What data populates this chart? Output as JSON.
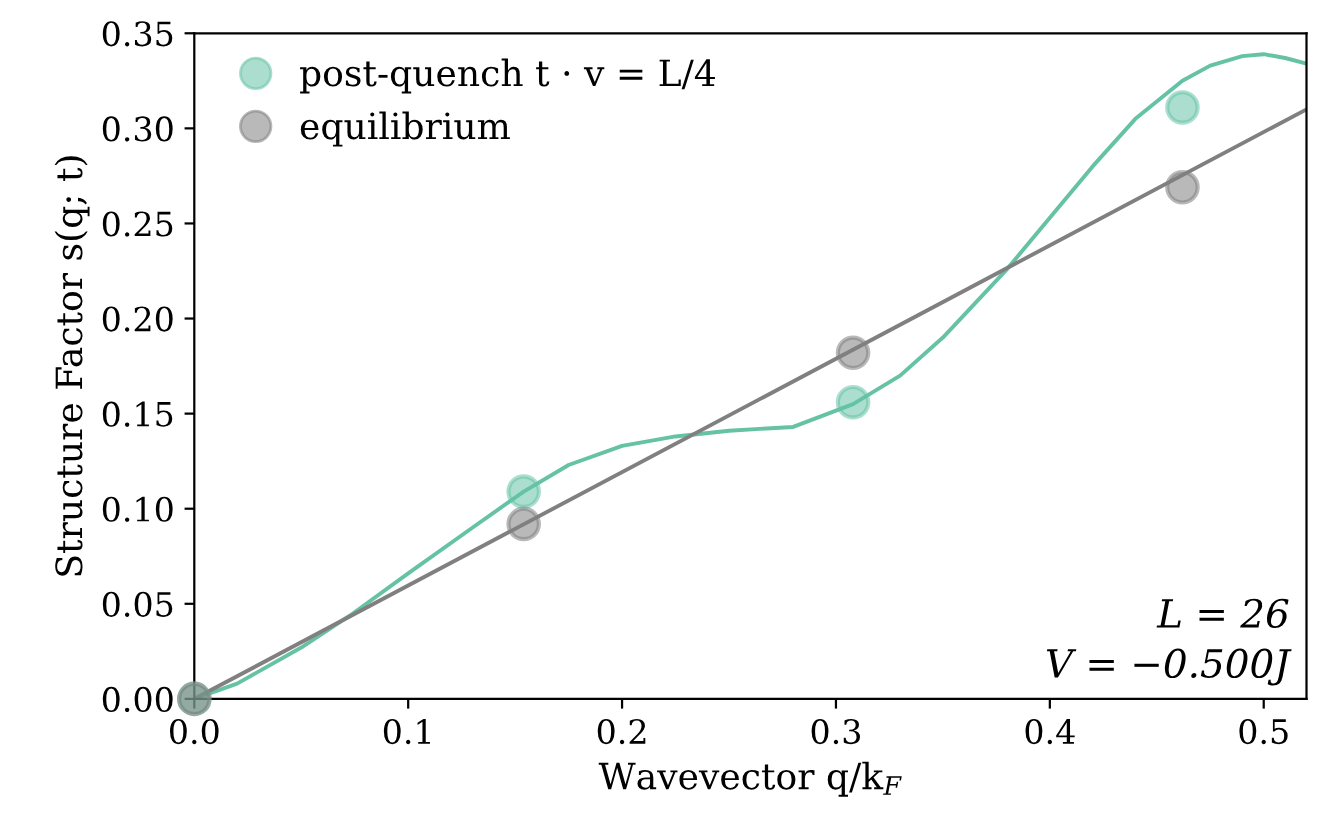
{
  "chart_data": {
    "type": "scatter",
    "xlabel": "Wavevector q/k$_{F}$",
    "ylabel": "Structure Factor s(q; t)",
    "xlim": [
      0,
      0.52
    ],
    "ylim": [
      0,
      0.35
    ],
    "xticks": [
      {
        "value": 0,
        "label": "0.0"
      },
      0.1,
      0.2,
      0.3,
      0.4,
      0.5
    ],
    "yticks": [
      {
        "value": 0,
        "label": "0.00"
      },
      0.05,
      {
        "value": 0.1,
        "label": "0.10"
      },
      0.15,
      {
        "value": 0.2,
        "label": "0.20"
      },
      0.25,
      {
        "value": 0.3,
        "label": "0.30"
      },
      0.35
    ],
    "grid": false,
    "legend": "top left",
    "annotations": [
      "L = 26",
      "V = −0.500J"
    ],
    "series": [
      {
        "name": "post-quench t · v = L/4",
        "color": "#66c2a5",
        "marker": "circle",
        "x": [
          0,
          0.154,
          0.308,
          0.462
        ],
        "values": [
          0,
          0.109,
          0.156,
          0.311
        ]
      },
      {
        "name": "equilibrium",
        "color": "#808080",
        "marker": "circle",
        "x": [
          0,
          0.154,
          0.308,
          0.462
        ],
        "values": [
          0,
          0.092,
          0.182,
          0.269
        ]
      },
      {
        "type": "line",
        "marker": "none",
        "color": "#66c2a5",
        "x": [
          0,
          0.02,
          0.05,
          0.073,
          0.1,
          0.13,
          0.154,
          0.175,
          0.2,
          0.225,
          0.25,
          0.28,
          0.308,
          0.33,
          0.35,
          0.38,
          0.42,
          0.44,
          0.462,
          0.475,
          0.49,
          0.5,
          0.51,
          0.52
        ],
        "values": [
          0,
          0.008,
          0.027,
          0.044,
          0.066,
          0.09,
          0.109,
          0.123,
          0.133,
          0.138,
          0.141,
          0.143,
          0.155,
          0.17,
          0.19,
          0.226,
          0.28,
          0.305,
          0.325,
          0.333,
          0.338,
          0.339,
          0.337,
          0.334
        ]
      },
      {
        "type": "line",
        "marker": "none",
        "color": "#808080",
        "x": [
          0,
          0.52
        ],
        "values": [
          0,
          0.31
        ]
      }
    ]
  }
}
